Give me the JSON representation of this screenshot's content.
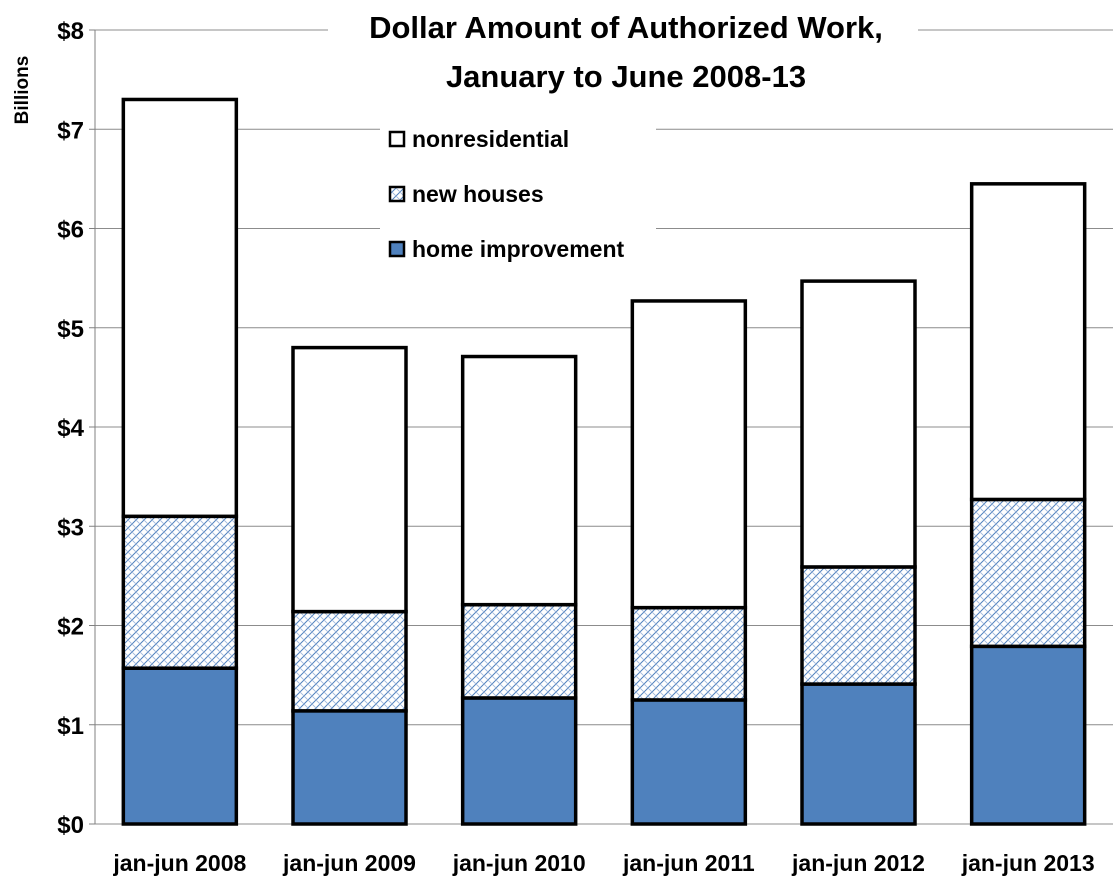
{
  "chart_data": {
    "type": "bar",
    "stacked": true,
    "title_line1": "Dollar Amount of Authorized Work,",
    "title_line2": "January to June 2008-13",
    "ylabel": "Billions",
    "xlabel": "",
    "ylim": [
      0,
      8
    ],
    "y_ticks": [
      0,
      1,
      2,
      3,
      4,
      5,
      6,
      7,
      8
    ],
    "y_tick_labels": [
      "$0",
      "$1",
      "$2",
      "$3",
      "$4",
      "$5",
      "$6",
      "$7",
      "$8"
    ],
    "grid": true,
    "legend_position": "top-center",
    "categories": [
      "jan-jun 2008",
      "jan-jun 2009",
      "jan-jun 2010",
      "jan-jun 2011",
      "jan-jun 2012",
      "jan-jun 2013"
    ],
    "series": [
      {
        "name": "home improvement",
        "values": [
          1.57,
          1.14,
          1.27,
          1.25,
          1.41,
          1.79
        ],
        "fill": "solid",
        "color": "#4f81bd"
      },
      {
        "name": "new houses",
        "values": [
          1.53,
          1.0,
          0.94,
          0.93,
          1.18,
          1.48
        ],
        "fill": "crosshatch",
        "color": "#4f81bd"
      },
      {
        "name": "nonresidential",
        "values": [
          4.2,
          2.66,
          2.5,
          3.09,
          2.88,
          3.18
        ],
        "fill": "none",
        "color": "#ffffff"
      }
    ],
    "legend_order": [
      "nonresidential",
      "new houses",
      "home improvement"
    ]
  }
}
